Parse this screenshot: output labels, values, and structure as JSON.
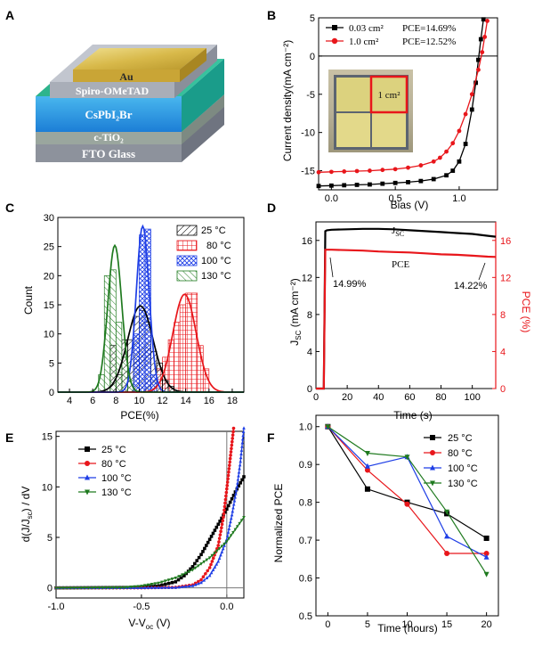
{
  "panels": {
    "A": {
      "letter": "A",
      "layers": [
        "Au",
        "Spiro-OMeTAD",
        "CsPbI₂Br",
        "c-TiO₂",
        "FTO Glass"
      ]
    },
    "B": {
      "letter": "B",
      "inset_label": "1 cm²"
    },
    "C": {
      "letter": "C"
    },
    "D": {
      "letter": "D",
      "jsc_label": "J",
      "jsc_sub": "SC",
      "pce_label": "PCE",
      "start_label": "14.99%",
      "end_label": "14.22%"
    },
    "E": {
      "letter": "E"
    },
    "F": {
      "letter": "F"
    }
  },
  "colors": {
    "black": "#000000",
    "red": "#e8161b",
    "blue": "#1f3fe6",
    "green": "#1f7a1f",
    "dim": "#707070"
  },
  "chart_data": [
    {
      "panel": "B",
      "type": "line",
      "xlabel": "Bias (V)",
      "ylabel": "Current density(mA cm⁻²)",
      "xlim": [
        -0.1,
        1.3
      ],
      "ylim": [
        -17.5,
        5
      ],
      "xticks": [
        0.0,
        0.5,
        1.0
      ],
      "yticks": [
        5,
        0,
        -5,
        -10,
        -15
      ],
      "legend_position": "top-left",
      "series": [
        {
          "name": "0.03 cm²",
          "note": "PCE=14.69%",
          "color": "#000000",
          "marker": "square",
          "x": [
            -0.1,
            0.0,
            0.1,
            0.2,
            0.3,
            0.4,
            0.5,
            0.6,
            0.7,
            0.8,
            0.9,
            0.95,
            1.0,
            1.05,
            1.1,
            1.13,
            1.15,
            1.17,
            1.19
          ],
          "y": [
            -17.0,
            -16.95,
            -16.9,
            -16.85,
            -16.8,
            -16.7,
            -16.6,
            -16.5,
            -16.35,
            -16.1,
            -15.6,
            -15.0,
            -13.8,
            -11.5,
            -7.0,
            -3.5,
            -0.5,
            2.2,
            4.8
          ]
        },
        {
          "name": "1.0 cm²",
          "note": "PCE=12.52%",
          "color": "#e8161b",
          "marker": "circle",
          "x": [
            -0.1,
            0.0,
            0.1,
            0.2,
            0.3,
            0.4,
            0.5,
            0.6,
            0.7,
            0.8,
            0.85,
            0.9,
            0.95,
            1.0,
            1.05,
            1.1,
            1.15,
            1.18,
            1.2,
            1.22
          ],
          "y": [
            -15.2,
            -15.15,
            -15.1,
            -15.05,
            -15.0,
            -14.9,
            -14.8,
            -14.6,
            -14.3,
            -13.8,
            -13.3,
            -12.5,
            -11.4,
            -9.8,
            -7.6,
            -5.0,
            -1.8,
            0.5,
            2.5,
            4.6
          ]
        }
      ]
    },
    {
      "panel": "C",
      "type": "bar",
      "xlabel": "PCE(%)",
      "ylabel": "Count",
      "xlim": [
        3,
        19
      ],
      "ylim": [
        0,
        30
      ],
      "xticks": [
        4,
        6,
        8,
        10,
        12,
        14,
        16,
        18
      ],
      "yticks": [
        0,
        5,
        10,
        15,
        20,
        25,
        30
      ],
      "legend_position": "top-right",
      "series": [
        {
          "name": "25 °C",
          "color": "#000000",
          "pattern": "diag",
          "bins": [
            [
              7.5,
              8
            ],
            [
              8,
              3
            ],
            [
              8.5,
              9
            ],
            [
              9,
              9
            ],
            [
              9.5,
              13
            ],
            [
              10,
              14
            ],
            [
              10.5,
              12
            ],
            [
              11,
              7
            ],
            [
              11.5,
              5
            ],
            [
              12,
              2
            ],
            [
              12.5,
              1
            ]
          ],
          "fit": {
            "mu": 10.1,
            "sigma": 1.1,
            "peak": 14.8
          }
        },
        {
          "name": "80 °C",
          "color": "#e8161b",
          "pattern": "grid",
          "bins": [
            [
              11.5,
              4
            ],
            [
              12,
              6
            ],
            [
              12.5,
              9
            ],
            [
              13,
              12
            ],
            [
              13.5,
              15
            ],
            [
              14,
              17
            ],
            [
              14.5,
              17
            ],
            [
              15,
              8
            ],
            [
              15.5,
              4
            ]
          ],
          "fit": {
            "mu": 13.9,
            "sigma": 1.0,
            "peak": 16.8
          }
        },
        {
          "name": "100 °C",
          "color": "#1f3fe6",
          "pattern": "cross",
          "bins": [
            [
              9.5,
              10
            ],
            [
              10,
              27
            ],
            [
              10.5,
              28
            ],
            [
              11,
              3
            ]
          ],
          "fit": {
            "mu": 10.3,
            "sigma": 0.55,
            "peak": 28.5
          }
        },
        {
          "name": "130 °C",
          "color": "#1f7a1f",
          "pattern": "diag2",
          "bins": [
            [
              6.5,
              3
            ],
            [
              7,
              20
            ],
            [
              7.5,
              21
            ],
            [
              8,
              12
            ],
            [
              8.5,
              6
            ],
            [
              9,
              2
            ]
          ],
          "fit": {
            "mu": 7.9,
            "sigma": 0.6,
            "peak": 25.2
          }
        }
      ]
    },
    {
      "panel": "D",
      "type": "line",
      "xlabel": "Time (s)",
      "ylabel_left": "J",
      "ylabel_left_sub": "SC",
      "ylabel_left_unit": " (mA cm⁻²)",
      "ylabel_right": "PCE (%)",
      "xlim": [
        0,
        115
      ],
      "ylim_left": [
        0,
        18
      ],
      "ylim_right": [
        0,
        18
      ],
      "xticks": [
        0,
        20,
        40,
        60,
        80,
        100
      ],
      "yticks_left": [
        0,
        4,
        8,
        12,
        16
      ],
      "yticks_right": [
        0,
        4,
        8,
        12,
        16
      ],
      "series": [
        {
          "name": "J_SC",
          "axis": "left",
          "color": "#000000",
          "x": [
            0,
            5,
            6,
            7,
            10,
            20,
            30,
            40,
            50,
            60,
            70,
            80,
            90,
            100,
            110,
            115
          ],
          "y": [
            0,
            0,
            17.0,
            17.1,
            17.15,
            17.2,
            17.25,
            17.25,
            17.2,
            17.1,
            17.0,
            16.9,
            16.8,
            16.7,
            16.5,
            16.4
          ]
        },
        {
          "name": "PCE",
          "axis": "right",
          "color": "#e8161b",
          "x": [
            0,
            5,
            6,
            7,
            10,
            20,
            30,
            40,
            50,
            60,
            70,
            80,
            90,
            100,
            110,
            115
          ],
          "y": [
            0,
            0,
            14.99,
            15.0,
            15.0,
            14.95,
            14.9,
            14.8,
            14.75,
            14.7,
            14.6,
            14.5,
            14.45,
            14.35,
            14.25,
            14.22
          ]
        }
      ]
    },
    {
      "panel": "E",
      "type": "line",
      "xlabel": "V-V",
      "xlabel_sub": "oc",
      "xlabel_unit": " (V)",
      "ylabel": "d(J/J",
      "ylabel_sub": "sc",
      "ylabel_unit": ") / dV",
      "xlim": [
        -1.0,
        0.1
      ],
      "ylim": [
        -1,
        15.5
      ],
      "xticks": [
        -1.0,
        -0.5,
        0.0
      ],
      "yticks": [
        0,
        5,
        10,
        15
      ],
      "legend_position": "top-left",
      "series": [
        {
          "name": "25 °C",
          "color": "#000000",
          "marker": "square",
          "x": [
            -1.0,
            -0.5,
            -0.4,
            -0.3,
            -0.25,
            -0.2,
            -0.15,
            -0.1,
            -0.05,
            0.0,
            0.05,
            0.08,
            0.1
          ],
          "y": [
            0,
            0.05,
            0.2,
            0.6,
            1.2,
            2.1,
            3.3,
            4.8,
            6.3,
            7.8,
            9.5,
            10.4,
            11.0
          ]
        },
        {
          "name": "80 °C",
          "color": "#e8161b",
          "marker": "circle",
          "x": [
            -1.0,
            -0.5,
            -0.3,
            -0.2,
            -0.15,
            -0.1,
            -0.05,
            -0.02,
            0.0,
            0.02,
            0.04
          ],
          "y": [
            0,
            0,
            0.05,
            0.3,
            0.8,
            2.0,
            4.2,
            7.0,
            9.8,
            12.8,
            15.8
          ]
        },
        {
          "name": "100 °C",
          "color": "#1f3fe6",
          "marker": "triangle",
          "x": [
            -1.0,
            -0.5,
            -0.3,
            -0.2,
            -0.15,
            -0.1,
            -0.05,
            0.0,
            0.03,
            0.06,
            0.08,
            0.1
          ],
          "y": [
            0,
            0,
            0.02,
            0.2,
            0.5,
            1.2,
            2.6,
            4.8,
            7.2,
            10.0,
            12.5,
            15.8
          ]
        },
        {
          "name": "130 °C",
          "color": "#1f7a1f",
          "marker": "triangle-down",
          "x": [
            -1.0,
            -0.6,
            -0.5,
            -0.4,
            -0.3,
            -0.2,
            -0.1,
            0.0,
            0.05,
            0.1
          ],
          "y": [
            0,
            0.05,
            0.2,
            0.5,
            1.0,
            1.8,
            3.0,
            4.6,
            5.8,
            7.0
          ]
        }
      ]
    },
    {
      "panel": "F",
      "type": "line",
      "xlabel": "Time (hours)",
      "ylabel": "Normalized PCE",
      "xlim": [
        -1.5,
        21.5
      ],
      "ylim": [
        0.5,
        1.03
      ],
      "xticks": [
        0,
        5,
        10,
        15,
        20
      ],
      "yticks": [
        0.5,
        0.6,
        0.7,
        0.8,
        0.9,
        1.0
      ],
      "legend_position": "top-right",
      "series": [
        {
          "name": "25 °C",
          "color": "#000000",
          "marker": "square",
          "x": [
            0,
            5,
            10,
            15,
            20
          ],
          "y": [
            1.0,
            0.835,
            0.8,
            0.77,
            0.705
          ]
        },
        {
          "name": "80 °C",
          "color": "#e8161b",
          "marker": "circle",
          "x": [
            0,
            5,
            10,
            15,
            20
          ],
          "y": [
            1.0,
            0.885,
            0.795,
            0.665,
            0.665
          ]
        },
        {
          "name": "100 °C",
          "color": "#1f3fe6",
          "marker": "triangle",
          "x": [
            0,
            5,
            10,
            15,
            20
          ],
          "y": [
            1.0,
            0.895,
            0.92,
            0.71,
            0.655
          ]
        },
        {
          "name": "130 °C",
          "color": "#1f7a1f",
          "marker": "triangle-down",
          "x": [
            0,
            5,
            10,
            15,
            20
          ],
          "y": [
            1.0,
            0.93,
            0.92,
            0.775,
            0.61
          ]
        }
      ]
    }
  ]
}
